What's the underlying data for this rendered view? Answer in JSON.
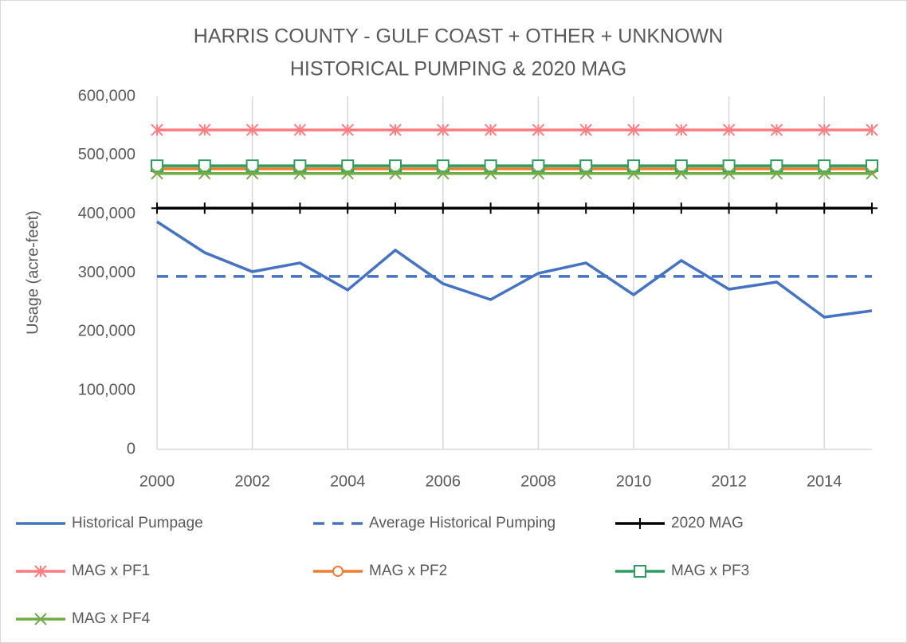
{
  "chart_data": {
    "type": "line",
    "title": [
      "HARRIS COUNTY - GULF COAST + OTHER + UNKNOWN",
      "HISTORICAL PUMPING & 2020 MAG"
    ],
    "y_label": "Usage (acre-feet)",
    "x": [
      2000,
      2001,
      2002,
      2003,
      2004,
      2005,
      2006,
      2007,
      2008,
      2009,
      2010,
      2011,
      2012,
      2013,
      2014,
      2015
    ],
    "xlim": [
      2000,
      2015
    ],
    "xticks": [
      2000,
      2002,
      2004,
      2006,
      2008,
      2010,
      2012,
      2014
    ],
    "ylim": [
      0,
      600000
    ],
    "yticks": [
      0,
      {
        "value": 100000,
        "label": "100,000"
      },
      {
        "value": 200000,
        "label": "200,000"
      },
      {
        "value": 300000,
        "label": "300,000"
      },
      {
        "value": 400000,
        "label": "400,000"
      },
      {
        "value": 500000,
        "label": "500,000"
      },
      {
        "value": 600000,
        "label": "600,000"
      }
    ],
    "grid": "x",
    "legend": "bottom",
    "series": [
      {
        "name": "Historical Pumpage",
        "color": "#4472c4",
        "dash": false,
        "marker": "none",
        "values": [
          387000,
          334500,
          302000,
          317000,
          271000,
          338600,
          281700,
          254600,
          299300,
          317000,
          262800,
          321000,
          272200,
          284400,
          224800,
          235700
        ]
      },
      {
        "name": "Average Historical Pumping",
        "color": "#4472c4",
        "dash": true,
        "marker": "none",
        "values": [
          294000,
          294000,
          294000,
          294000,
          294000,
          294000,
          294000,
          294000,
          294000,
          294000,
          294000,
          294000,
          294000,
          294000,
          294000,
          294000
        ]
      },
      {
        "name": "2020 MAG",
        "color": "#000000",
        "dash": false,
        "marker": "plus",
        "values": [
          410000,
          410000,
          410000,
          410000,
          410000,
          410000,
          410000,
          410000,
          410000,
          410000,
          410000,
          410000,
          410000,
          410000,
          410000,
          410000
        ]
      },
      {
        "name": "MAG x PF1",
        "color": "#ff7c80",
        "dash": false,
        "marker": "asterisk",
        "values": [
          543000,
          543000,
          543000,
          543000,
          543000,
          543000,
          543000,
          543000,
          543000,
          543000,
          543000,
          543000,
          543000,
          543000,
          543000,
          543000
        ]
      },
      {
        "name": "MAG x PF2",
        "color": "#ed7d31",
        "dash": false,
        "marker": "circle",
        "values": [
          477000,
          477000,
          477000,
          477000,
          477000,
          477000,
          477000,
          477000,
          477000,
          477000,
          477000,
          477000,
          477000,
          477000,
          477000,
          477000
        ]
      },
      {
        "name": "MAG x PF3",
        "color": "#2e9e5e",
        "dash": false,
        "marker": "square",
        "values": [
          482000,
          482000,
          482000,
          482000,
          482000,
          482000,
          482000,
          482000,
          482000,
          482000,
          482000,
          482000,
          482000,
          482000,
          482000,
          482000
        ]
      },
      {
        "name": "MAG x PF4",
        "color": "#70ad47",
        "dash": false,
        "marker": "x",
        "values": [
          469000,
          469000,
          469000,
          469000,
          469000,
          469000,
          469000,
          469000,
          469000,
          469000,
          469000,
          469000,
          469000,
          469000,
          469000,
          469000
        ]
      }
    ]
  }
}
